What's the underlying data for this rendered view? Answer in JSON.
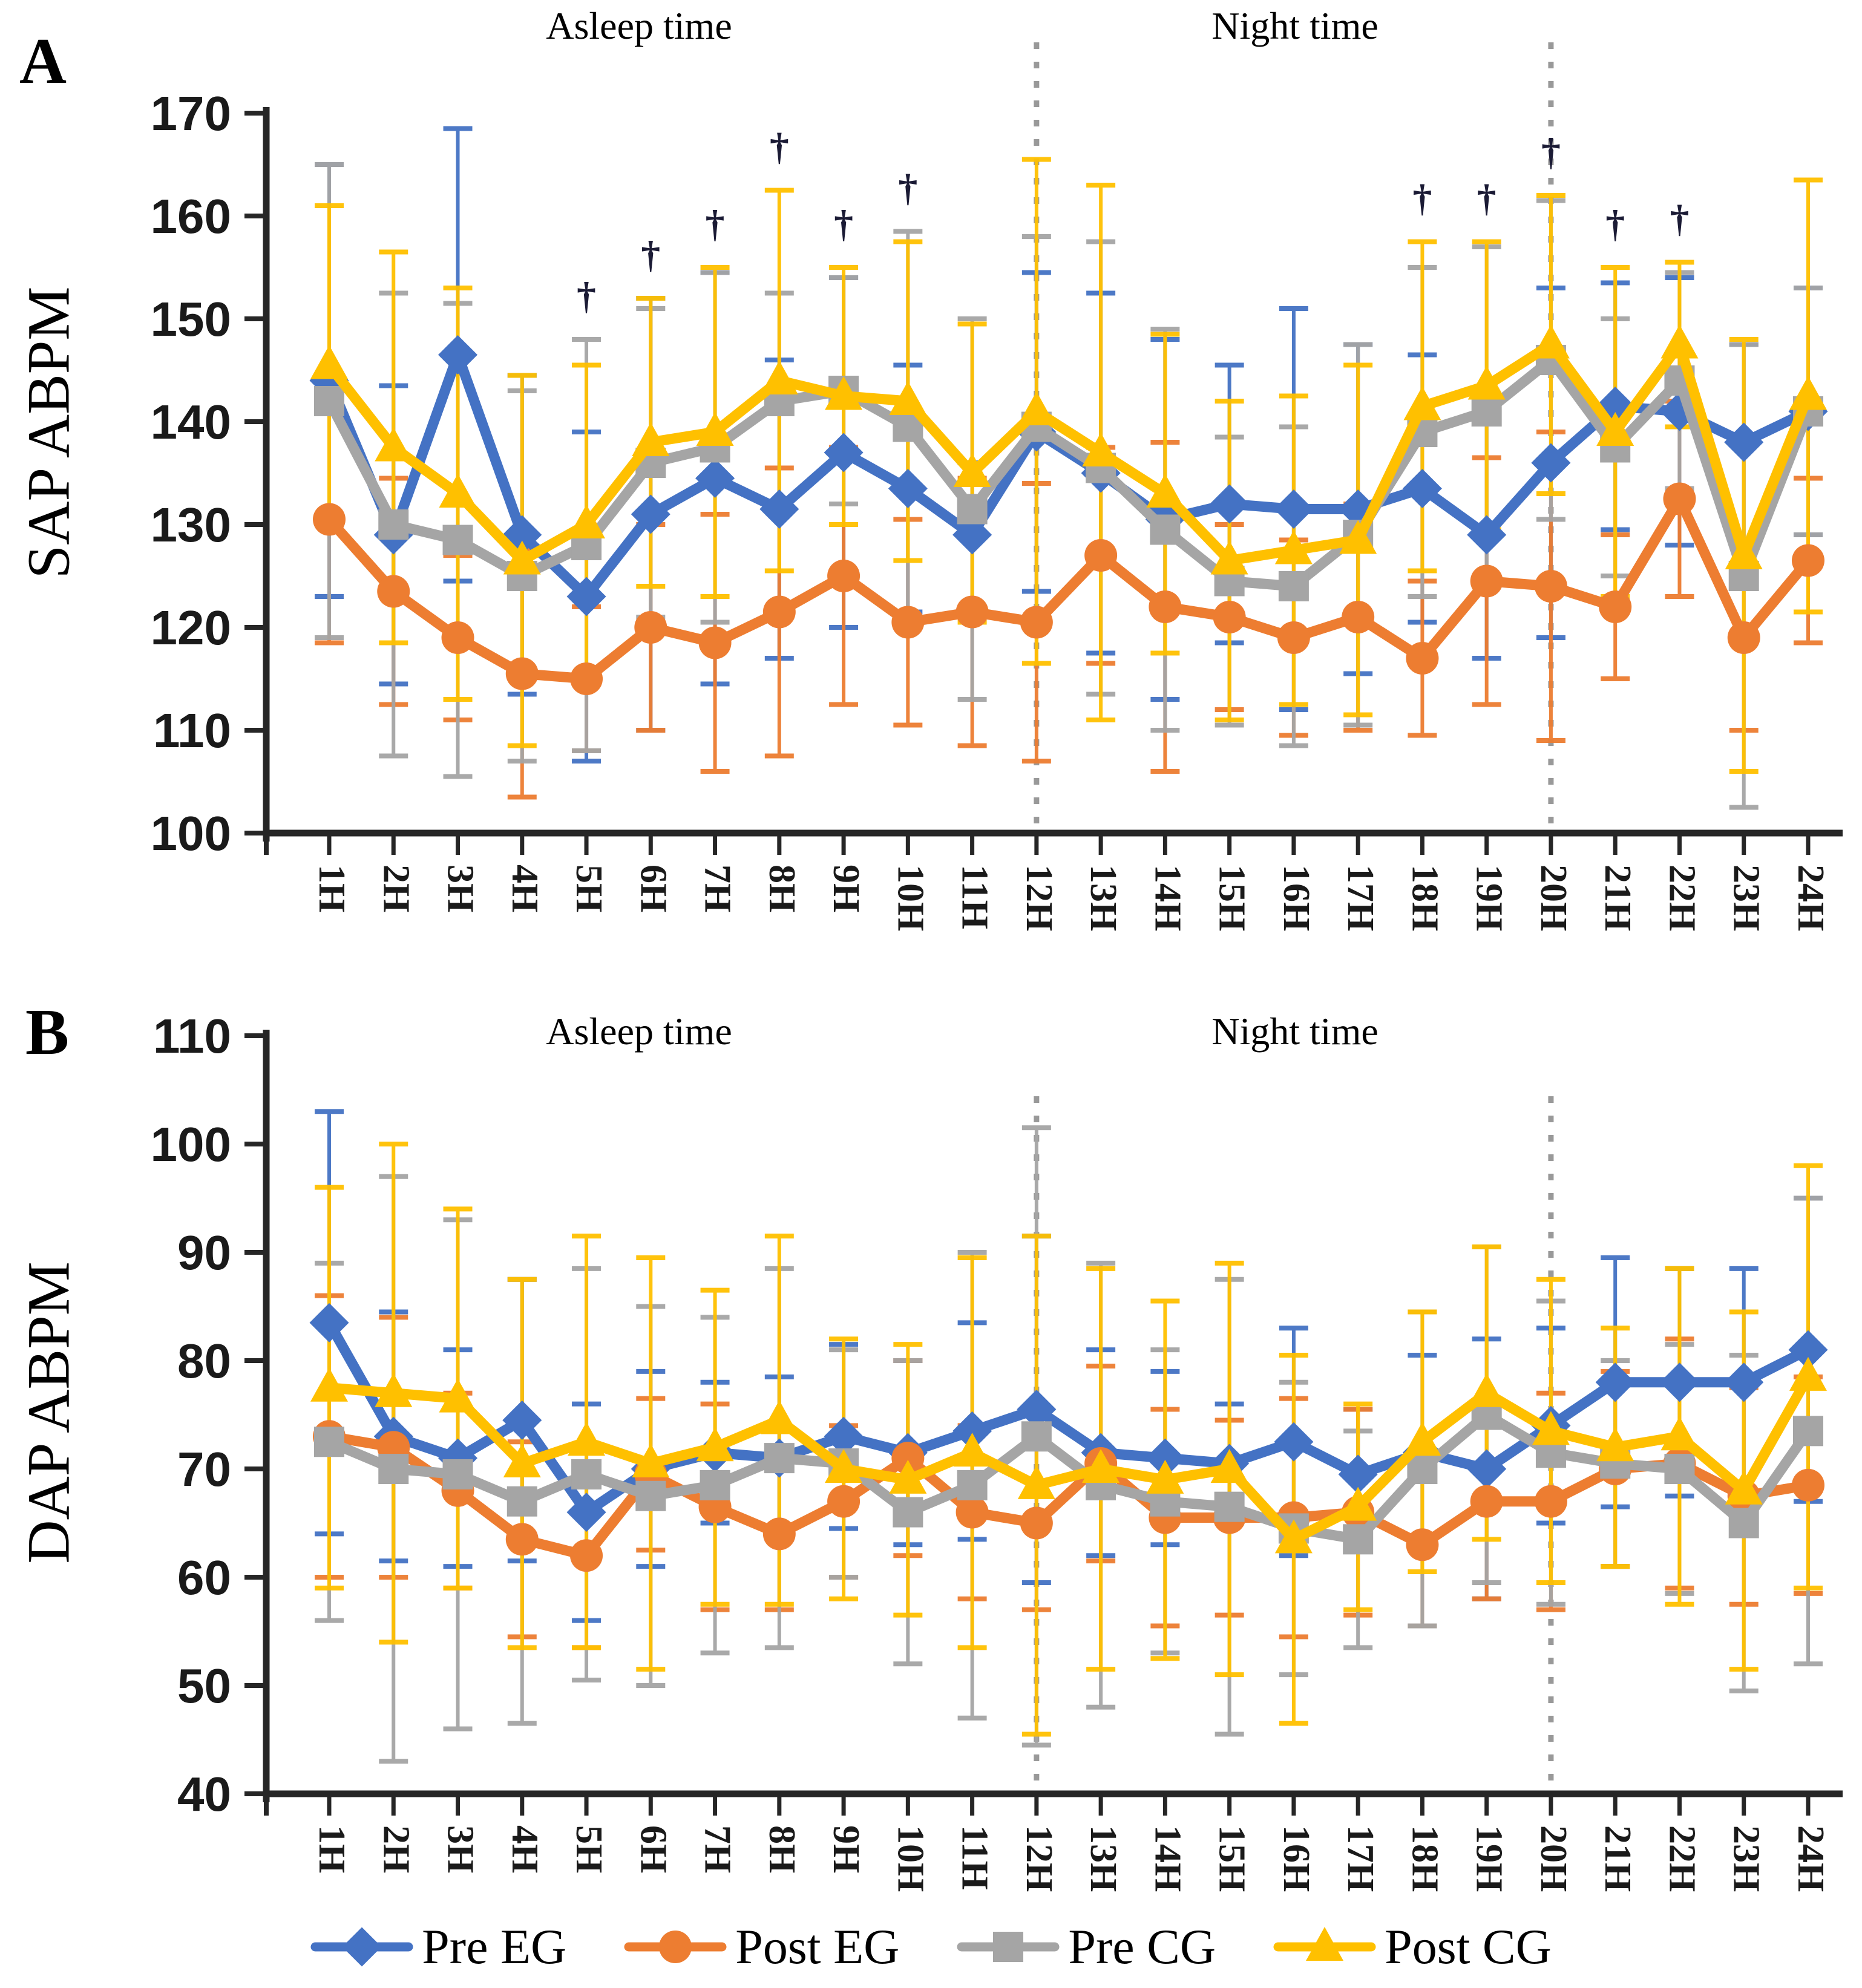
{
  "figure": {
    "panels": [
      {
        "letter": "A",
        "y_axis_title": "SAP ABPM"
      },
      {
        "letter": "B",
        "y_axis_title": "DAP ABPM"
      }
    ],
    "legend": [
      {
        "label": "Pre EG",
        "color": "#4472C4",
        "marker": "diamond"
      },
      {
        "label": "Post EG",
        "color": "#ED7D31",
        "marker": "circle"
      },
      {
        "label": "Pre CG",
        "color": "#A5A5A5",
        "marker": "square"
      },
      {
        "label": "Post CG",
        "color": "#FFC000",
        "marker": "triangle"
      }
    ],
    "colors": {
      "axis": "#262626",
      "dotted_line": "#999999",
      "dagger": "#1b1b35"
    }
  },
  "chart_data": [
    {
      "type": "line",
      "panel": "A",
      "ylabel": "SAP ABPM",
      "categories": [
        "1H",
        "2H",
        "3H",
        "4H",
        "5H",
        "6H",
        "7H",
        "8H",
        "9H",
        "10H",
        "11H",
        "12H",
        "13H",
        "14H",
        "15H",
        "16H",
        "17H",
        "18H",
        "19H",
        "20H",
        "21H",
        "22H",
        "23H",
        "24H"
      ],
      "ylim": [
        100,
        170
      ],
      "ytick_step": 10,
      "grid": false,
      "legend_position": "bottom",
      "region_labels": [
        {
          "text": "Asleep time",
          "center_hour_index": 5.8
        },
        {
          "text": "Night time",
          "center_hour_index": 16.0
        }
      ],
      "dotted_line_hours": [
        "12H",
        "20H"
      ],
      "dagger_hours": [
        "5H",
        "6H",
        "7H",
        "8H",
        "9H",
        "10H",
        "18H",
        "19H",
        "20H",
        "21H",
        "22H"
      ],
      "dagger_symbol": "†",
      "series": [
        {
          "name": "Pre EG",
          "color": "#4472C4",
          "marker": "diamond",
          "values": [
            144,
            129,
            146.5,
            129,
            123,
            131,
            134.5,
            131.5,
            137,
            133.5,
            129,
            139,
            135,
            130.5,
            132,
            131.5,
            131.5,
            133.5,
            129,
            136,
            141.5,
            141,
            138,
            141
          ],
          "err": [
            21,
            14.5,
            22,
            15.5,
            16,
            21,
            20,
            14.5,
            17,
            12,
            7,
            15.5,
            17.5,
            17.5,
            13.5,
            19.5,
            16,
            13,
            12,
            17,
            12,
            13,
            9.5,
            12
          ]
        },
        {
          "name": "Post EG",
          "color": "#ED7D31",
          "marker": "circle",
          "values": [
            130.5,
            123.5,
            119,
            115.5,
            115,
            120,
            118.5,
            121.5,
            125,
            120.5,
            121.5,
            120.5,
            127,
            122,
            121,
            119,
            121,
            117,
            124.5,
            124,
            122,
            132.5,
            119,
            126.5
          ],
          "err": [
            12,
            11,
            8,
            12,
            7,
            10,
            12.5,
            14,
            12.5,
            10,
            13,
            13.5,
            10.5,
            16,
            9,
            9.5,
            11,
            7.5,
            12,
            15,
            7,
            9.5,
            9,
            8
          ]
        },
        {
          "name": "Pre CG",
          "color": "#A5A5A5",
          "marker": "square",
          "values": [
            142,
            130,
            128.5,
            125,
            128,
            136,
            137.5,
            142,
            143,
            139.5,
            131.5,
            139.5,
            135.5,
            129.5,
            124.5,
            124,
            129,
            139,
            141,
            146,
            137.5,
            144,
            125,
            141
          ],
          "err": [
            23,
            22.5,
            23,
            18,
            20,
            15,
            17,
            10.5,
            11,
            19,
            18.5,
            18.5,
            22,
            19.5,
            14,
            15.5,
            18.5,
            16,
            16,
            15.5,
            12.5,
            10.5,
            22.5,
            12
          ]
        },
        {
          "name": "Post CG",
          "color": "#FFC000",
          "marker": "triangle",
          "values": [
            145.5,
            137.5,
            133,
            126.5,
            130,
            138,
            139,
            144,
            142.5,
            142,
            135,
            141,
            137,
            133,
            126.5,
            127.5,
            128.5,
            141.5,
            143.5,
            147.5,
            139,
            147.5,
            127,
            142.5
          ],
          "err": [
            15.5,
            19,
            20,
            18,
            15.5,
            14,
            16,
            18.5,
            12.5,
            15.5,
            14.5,
            24.5,
            26,
            15.5,
            15.5,
            15,
            17,
            16,
            14,
            14.5,
            16,
            8,
            21,
            21
          ]
        }
      ]
    },
    {
      "type": "line",
      "panel": "B",
      "ylabel": "DAP ABPM",
      "categories": [
        "1H",
        "2H",
        "3H",
        "4H",
        "5H",
        "6H",
        "7H",
        "8H",
        "9H",
        "10H",
        "11H",
        "12H",
        "13H",
        "14H",
        "15H",
        "16H",
        "17H",
        "18H",
        "19H",
        "20H",
        "21H",
        "22H",
        "23H",
        "24H"
      ],
      "ylim": [
        40,
        110
      ],
      "ytick_step": 10,
      "grid": false,
      "legend_position": "bottom",
      "region_labels": [
        {
          "text": "Asleep time",
          "center_hour_index": 5.8
        },
        {
          "text": "Night time",
          "center_hour_index": 16.0
        }
      ],
      "dotted_line_hours": [
        "12H",
        "20H"
      ],
      "dagger_hours": [],
      "dagger_symbol": "†",
      "series": [
        {
          "name": "Pre EG",
          "color": "#4472C4",
          "marker": "diamond",
          "values": [
            83.5,
            73,
            71,
            74.5,
            66,
            70,
            71.5,
            71,
            73,
            71.5,
            73.5,
            75.5,
            71.5,
            71,
            70.5,
            72.5,
            69.5,
            71.5,
            70,
            74,
            78,
            78,
            78,
            81
          ],
          "err": [
            19.5,
            11.5,
            10,
            13,
            10,
            9,
            6.5,
            7.5,
            8.5,
            8.5,
            10,
            16,
            9.5,
            8,
            5.5,
            10.5,
            6,
            9,
            12,
            9,
            11.5,
            10.5,
            10.5,
            14
          ]
        },
        {
          "name": "Post EG",
          "color": "#ED7D31",
          "marker": "circle",
          "values": [
            73,
            72,
            68,
            63.5,
            62,
            69.5,
            66.5,
            64,
            67,
            71,
            66,
            65,
            70.5,
            65.5,
            65.5,
            65.5,
            66,
            63,
            67,
            67,
            70,
            70.5,
            67.5,
            68.5
          ],
          "err": [
            13,
            12,
            9,
            9,
            8.5,
            7,
            9.5,
            7,
            7,
            9,
            8,
            8,
            9,
            10,
            9,
            11,
            9.5,
            7.5,
            9,
            10,
            9,
            11.5,
            10,
            10
          ]
        },
        {
          "name": "Pre CG",
          "color": "#A5A5A5",
          "marker": "square",
          "values": [
            72.5,
            70,
            69.5,
            67,
            69.5,
            67.5,
            68.5,
            71,
            70.5,
            66,
            68.5,
            73,
            68.5,
            67,
            66.5,
            64.5,
            63.5,
            70,
            75,
            71.5,
            70.5,
            70,
            65,
            73.5
          ],
          "err": [
            16.5,
            27,
            23.5,
            20.5,
            19,
            17.5,
            15.5,
            17.5,
            10.5,
            14,
            21.5,
            28.5,
            20.5,
            14,
            21,
            13.5,
            10,
            14.5,
            15.5,
            14,
            9.5,
            11.5,
            15.5,
            21.5
          ]
        },
        {
          "name": "Post CG",
          "color": "#FFC000",
          "marker": "triangle",
          "values": [
            77.5,
            77,
            76.5,
            70.5,
            72.5,
            70.5,
            72,
            74.5,
            70,
            69,
            71.5,
            68.5,
            70,
            69,
            70,
            63.5,
            66.5,
            72.5,
            77,
            73.5,
            72,
            73,
            68,
            78.5
          ],
          "err": [
            18.5,
            23,
            17.5,
            17,
            19,
            19,
            14.5,
            17,
            12,
            12.5,
            18,
            23,
            18.5,
            16.5,
            19,
            17,
            9.5,
            12,
            13.5,
            14,
            11,
            15.5,
            16.5,
            19.5
          ]
        }
      ]
    }
  ]
}
